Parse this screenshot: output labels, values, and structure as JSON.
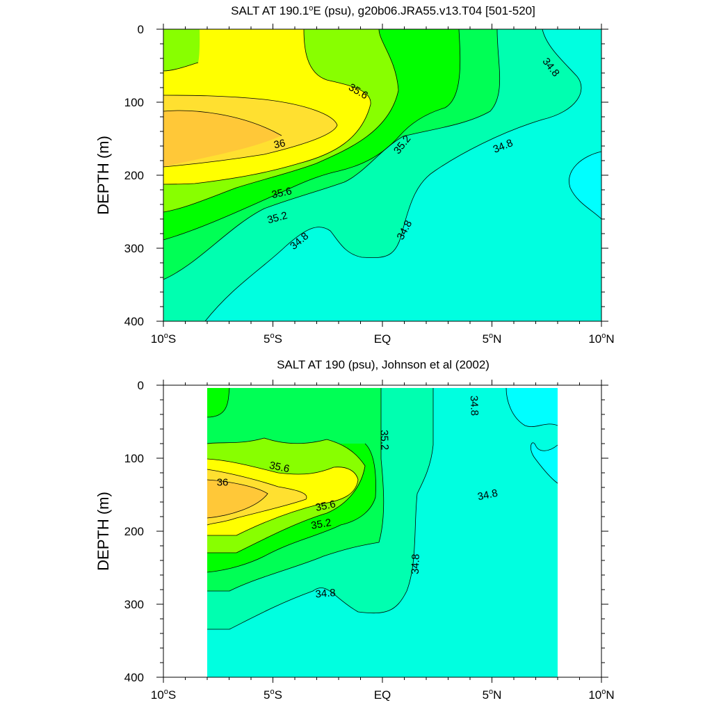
{
  "chart_data": [
    {
      "type": "contour",
      "title": "SALT AT 190.1ºE (psu), g20b06.JRA55.v13.T04 [501-520]",
      "title_parts": {
        "before": "SALT AT 190.1",
        "sup": "o",
        "after": "E (psu), g20b06.JRA55.v13.T04 [501-520]"
      },
      "ylabel": "DEPTH (m)",
      "xlim": [
        -10,
        10
      ],
      "ylim": [
        400,
        0
      ],
      "x_ticks": [
        {
          "value": -10,
          "num": "10",
          "hemi": "S"
        },
        {
          "value": -5,
          "num": "5",
          "hemi": "S"
        },
        {
          "value": 0,
          "num": "EQ",
          "hemi": ""
        },
        {
          "value": 5,
          "num": "5",
          "hemi": "N"
        },
        {
          "value": 10,
          "num": "10",
          "hemi": "N"
        }
      ],
      "y_ticks": [
        "0",
        "100",
        "200",
        "300",
        "400"
      ],
      "data_extent_x": [
        -10,
        10
      ],
      "contour_levels": [
        34.6,
        34.8,
        35.0,
        35.2,
        35.4,
        35.6,
        35.8,
        36.0
      ],
      "fill_colors": {
        "lt34.6": "#00ffff",
        "34.6-34.8": "#00ffe0",
        "34.8-35.0": "#00ffb0",
        "35.0-35.2": "#00ff55",
        "35.2-35.4": "#00ff00",
        "35.4-35.6": "#88ff00",
        "35.6-35.8": "#ffff00",
        "35.8-36.0": "#ffe030",
        "gt36.0": "#ffc838"
      },
      "contour_labels": [
        {
          "text": "35.6",
          "x": -1.1,
          "y": 85,
          "angle": 30
        },
        {
          "text": "36",
          "x": -4.7,
          "y": 157,
          "angle": -12
        },
        {
          "text": "35.6",
          "x": -4.6,
          "y": 224,
          "angle": -12
        },
        {
          "text": "35.2",
          "x": -4.8,
          "y": 258,
          "angle": -15
        },
        {
          "text": "35.2",
          "x": 0.9,
          "y": 158,
          "angle": -52
        },
        {
          "text": "34.8",
          "x": 7.7,
          "y": 52,
          "angle": 52
        },
        {
          "text": "34.8",
          "x": 5.5,
          "y": 160,
          "angle": -22
        },
        {
          "text": "34.8",
          "x": -3.8,
          "y": 290,
          "angle": -40
        },
        {
          "text": "34.8",
          "x": 1.0,
          "y": 275,
          "angle": -62
        }
      ]
    },
    {
      "type": "contour",
      "title": "SALT AT 190 (psu), Johnson et al (2002)",
      "title_parts": {
        "before": "SALT AT 190 (psu), Johnson et al (2002)",
        "sup": "",
        "after": ""
      },
      "ylabel": "DEPTH (m)",
      "xlim": [
        -10,
        10
      ],
      "ylim": [
        400,
        0
      ],
      "x_ticks": [
        {
          "value": -10,
          "num": "10",
          "hemi": "S"
        },
        {
          "value": -5,
          "num": "5",
          "hemi": "S"
        },
        {
          "value": 0,
          "num": "EQ",
          "hemi": ""
        },
        {
          "value": 5,
          "num": "5",
          "hemi": "N"
        },
        {
          "value": 10,
          "num": "10",
          "hemi": "N"
        }
      ],
      "y_ticks": [
        "0",
        "100",
        "200",
        "300",
        "400"
      ],
      "data_extent_x": [
        -8,
        8
      ],
      "contour_levels": [
        34.6,
        34.8,
        35.0,
        35.2,
        35.4,
        35.6,
        35.8,
        36.0
      ],
      "fill_colors": {
        "lt34.6": "#00ffff",
        "34.6-34.8": "#00ffe0",
        "34.8-35.0": "#00ffb0",
        "35.0-35.2": "#00ff55",
        "35.2-35.4": "#00ff00",
        "35.4-35.6": "#88ff00",
        "35.6-35.8": "#ffff00",
        "35.8-36.0": "#ffe030",
        "gt36.0": "#ffc838"
      },
      "contour_labels": [
        {
          "text": "35.6",
          "x": -4.7,
          "y": 112,
          "angle": 12
        },
        {
          "text": "36",
          "x": -7.3,
          "y": 133,
          "angle": 0
        },
        {
          "text": "35.6",
          "x": -2.6,
          "y": 165,
          "angle": -12
        },
        {
          "text": "35.2",
          "x": -2.8,
          "y": 190,
          "angle": -10
        },
        {
          "text": "35.2",
          "x": 0.1,
          "y": 75,
          "angle": 88
        },
        {
          "text": "34.8",
          "x": 4.2,
          "y": 28,
          "angle": 88
        },
        {
          "text": "34.8",
          "x": 4.8,
          "y": 150,
          "angle": -12
        },
        {
          "text": "34.8",
          "x": 1.5,
          "y": 245,
          "angle": -88
        },
        {
          "text": "34.8",
          "x": -2.6,
          "y": 285,
          "angle": -5
        }
      ]
    }
  ]
}
